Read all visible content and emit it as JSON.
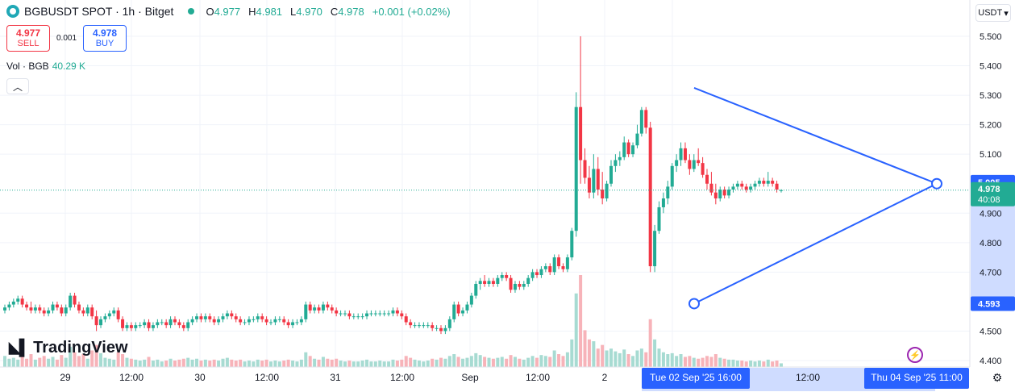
{
  "header": {
    "title": "BGBUSDT SPOT · 1h · Bitget",
    "ohlc": [
      {
        "label": "O",
        "value": "4.977"
      },
      {
        "label": "H",
        "value": "4.981"
      },
      {
        "label": "L",
        "value": "4.970"
      },
      {
        "label": "C",
        "value": "4.978"
      },
      {
        "label": "",
        "value": "+0.001 (+0.02%)"
      }
    ]
  },
  "trade": {
    "sell_price": "4.977",
    "sell_label": "SELL",
    "spread": "0.001",
    "buy_price": "4.978",
    "buy_label": "BUY"
  },
  "volume": {
    "label": "Vol · BGB",
    "value": "40.29 K"
  },
  "brand": "TradingView",
  "currency": "USDT",
  "colors": {
    "up": "#22ab94",
    "down": "#f23645",
    "up_volume": "#a7dbd2",
    "down_volume": "#f7b3b9",
    "drawing": "#2962ff",
    "range_highlight": "#cfdcff"
  },
  "chart_data": {
    "type": "candlestick",
    "timeframe": "1h",
    "ylim": [
      4.4,
      5.55
    ],
    "yticks": [
      "5.500",
      "5.400",
      "5.300",
      "5.200",
      "5.100",
      "4.900",
      "4.800",
      "4.700",
      "4.500",
      "4.400"
    ],
    "xticks": [
      "29",
      "12:00",
      "30",
      "12:00",
      "31",
      "12:00",
      "Sep",
      "12:00",
      "2",
      "12:00"
    ],
    "price_labels": [
      {
        "value": 5.005,
        "text": "5.005",
        "style": "outline"
      },
      {
        "value": 4.978,
        "text": "4.978",
        "sub": "40:08",
        "style": "last"
      },
      {
        "value": 4.593,
        "text": "4.593",
        "style": "outline"
      }
    ],
    "date_range_labels": [
      "Tue 02 Sep '25  16:00",
      "Thu 04 Sep '25  11:00"
    ],
    "triangle_drawing": {
      "points": [
        {
          "bar": 130,
          "price": 5.325
        },
        {
          "bar": 170,
          "price": 5.0
        },
        {
          "bar": 130,
          "price": 4.593
        }
      ]
    },
    "candles": [
      [
        4.57,
        4.59,
        4.56,
        4.58,
        12
      ],
      [
        4.58,
        4.6,
        4.57,
        4.59,
        9
      ],
      [
        4.59,
        4.61,
        4.58,
        4.6,
        10
      ],
      [
        4.6,
        4.62,
        4.59,
        4.61,
        8
      ],
      [
        4.61,
        4.62,
        4.58,
        4.59,
        11
      ],
      [
        4.59,
        4.6,
        4.57,
        4.58,
        9
      ],
      [
        4.58,
        4.6,
        4.56,
        4.57,
        14
      ],
      [
        4.57,
        4.59,
        4.56,
        4.58,
        8
      ],
      [
        4.58,
        4.59,
        4.56,
        4.57,
        10
      ],
      [
        4.57,
        4.58,
        4.55,
        4.56,
        12
      ],
      [
        4.56,
        4.58,
        4.55,
        4.57,
        9
      ],
      [
        4.57,
        4.6,
        4.56,
        4.59,
        11
      ],
      [
        4.59,
        4.6,
        4.57,
        4.58,
        8
      ],
      [
        4.58,
        4.59,
        4.55,
        4.56,
        13
      ],
      [
        4.56,
        4.59,
        4.55,
        4.58,
        10
      ],
      [
        4.58,
        4.63,
        4.57,
        4.62,
        22
      ],
      [
        4.62,
        4.63,
        4.58,
        4.59,
        16
      ],
      [
        4.59,
        4.6,
        4.56,
        4.57,
        12
      ],
      [
        4.57,
        4.58,
        4.55,
        4.56,
        14
      ],
      [
        4.56,
        4.59,
        4.55,
        4.58,
        9
      ],
      [
        4.58,
        4.59,
        4.54,
        4.55,
        18
      ],
      [
        4.55,
        4.57,
        4.5,
        4.52,
        24
      ],
      [
        4.52,
        4.55,
        4.51,
        4.54,
        15
      ],
      [
        4.54,
        4.56,
        4.53,
        4.55,
        10
      ],
      [
        4.55,
        4.57,
        4.54,
        4.56,
        9
      ],
      [
        4.56,
        4.58,
        4.55,
        4.57,
        8
      ],
      [
        4.57,
        4.58,
        4.53,
        4.54,
        16
      ],
      [
        4.54,
        4.55,
        4.5,
        4.51,
        14
      ],
      [
        4.51,
        4.53,
        4.5,
        4.52,
        10
      ],
      [
        4.52,
        4.53,
        4.5,
        4.51,
        9
      ],
      [
        4.51,
        4.53,
        4.5,
        4.52,
        8
      ],
      [
        4.52,
        4.53,
        4.51,
        4.52,
        7
      ],
      [
        4.52,
        4.54,
        4.51,
        4.53,
        8
      ],
      [
        4.53,
        4.54,
        4.5,
        4.51,
        11
      ],
      [
        4.51,
        4.53,
        4.5,
        4.52,
        7
      ],
      [
        4.52,
        4.54,
        4.51,
        4.53,
        8
      ],
      [
        4.53,
        4.54,
        4.52,
        4.53,
        6
      ],
      [
        4.53,
        4.54,
        4.51,
        4.52,
        7
      ],
      [
        4.52,
        4.55,
        4.51,
        4.54,
        9
      ],
      [
        4.54,
        4.55,
        4.52,
        4.53,
        7
      ],
      [
        4.53,
        4.54,
        4.51,
        4.52,
        8
      ],
      [
        4.52,
        4.53,
        4.5,
        4.51,
        9
      ],
      [
        4.51,
        4.54,
        4.5,
        4.53,
        10
      ],
      [
        4.53,
        4.55,
        4.52,
        4.54,
        8
      ],
      [
        4.54,
        4.56,
        4.53,
        4.55,
        9
      ],
      [
        4.55,
        4.56,
        4.53,
        4.54,
        7
      ],
      [
        4.54,
        4.56,
        4.53,
        4.55,
        8
      ],
      [
        4.55,
        4.56,
        4.53,
        4.54,
        7
      ],
      [
        4.54,
        4.55,
        4.52,
        4.53,
        8
      ],
      [
        4.53,
        4.55,
        4.52,
        4.54,
        7
      ],
      [
        4.54,
        4.56,
        4.53,
        4.55,
        9
      ],
      [
        4.55,
        4.57,
        4.54,
        4.56,
        10
      ],
      [
        4.56,
        4.57,
        4.54,
        4.55,
        8
      ],
      [
        4.55,
        4.56,
        4.53,
        4.54,
        7
      ],
      [
        4.54,
        4.55,
        4.52,
        4.53,
        8
      ],
      [
        4.53,
        4.54,
        4.52,
        4.53,
        6
      ],
      [
        4.53,
        4.55,
        4.52,
        4.54,
        7
      ],
      [
        4.54,
        4.55,
        4.53,
        4.54,
        6
      ],
      [
        4.54,
        4.56,
        4.53,
        4.55,
        8
      ],
      [
        4.55,
        4.56,
        4.53,
        4.54,
        7
      ],
      [
        4.54,
        4.55,
        4.52,
        4.53,
        8
      ],
      [
        4.53,
        4.54,
        4.52,
        4.53,
        6
      ],
      [
        4.53,
        4.55,
        4.52,
        4.54,
        7
      ],
      [
        4.54,
        4.55,
        4.53,
        4.54,
        6
      ],
      [
        4.54,
        4.55,
        4.52,
        4.53,
        7
      ],
      [
        4.53,
        4.54,
        4.51,
        4.52,
        8
      ],
      [
        4.52,
        4.54,
        4.51,
        4.53,
        7
      ],
      [
        4.53,
        4.54,
        4.52,
        4.53,
        6
      ],
      [
        4.53,
        4.55,
        4.52,
        4.54,
        8
      ],
      [
        4.54,
        4.6,
        4.53,
        4.59,
        16
      ],
      [
        4.59,
        4.6,
        4.56,
        4.57,
        12
      ],
      [
        4.57,
        4.59,
        4.56,
        4.58,
        9
      ],
      [
        4.58,
        4.59,
        4.56,
        4.57,
        8
      ],
      [
        4.57,
        4.6,
        4.56,
        4.59,
        11
      ],
      [
        4.59,
        4.6,
        4.57,
        4.58,
        9
      ],
      [
        4.58,
        4.59,
        4.56,
        4.57,
        8
      ],
      [
        4.57,
        4.58,
        4.55,
        4.56,
        9
      ],
      [
        4.56,
        4.57,
        4.55,
        4.56,
        7
      ],
      [
        4.56,
        4.57,
        4.55,
        4.56,
        6
      ],
      [
        4.56,
        4.57,
        4.54,
        4.55,
        7
      ],
      [
        4.55,
        4.56,
        4.54,
        4.55,
        6
      ],
      [
        4.55,
        4.56,
        4.54,
        4.55,
        6
      ],
      [
        4.55,
        4.56,
        4.54,
        4.55,
        7
      ],
      [
        4.55,
        4.57,
        4.54,
        4.56,
        8
      ],
      [
        4.56,
        4.57,
        4.55,
        4.56,
        6
      ],
      [
        4.56,
        4.57,
        4.55,
        4.56,
        6
      ],
      [
        4.56,
        4.57,
        4.55,
        4.56,
        7
      ],
      [
        4.56,
        4.57,
        4.55,
        4.56,
        6
      ],
      [
        4.56,
        4.57,
        4.55,
        4.56,
        6
      ],
      [
        4.56,
        4.58,
        4.55,
        4.57,
        8
      ],
      [
        4.57,
        4.58,
        4.55,
        4.56,
        7
      ],
      [
        4.56,
        4.57,
        4.54,
        4.55,
        8
      ],
      [
        4.55,
        4.56,
        4.52,
        4.53,
        12
      ],
      [
        4.53,
        4.54,
        4.51,
        4.52,
        10
      ],
      [
        4.52,
        4.53,
        4.51,
        4.52,
        8
      ],
      [
        4.52,
        4.53,
        4.51,
        4.52,
        7
      ],
      [
        4.52,
        4.53,
        4.51,
        4.52,
        6
      ],
      [
        4.52,
        4.53,
        4.51,
        4.52,
        7
      ],
      [
        4.52,
        4.53,
        4.5,
        4.51,
        9
      ],
      [
        4.51,
        4.52,
        4.5,
        4.51,
        8
      ],
      [
        4.51,
        4.52,
        4.49,
        4.5,
        10
      ],
      [
        4.5,
        4.52,
        4.49,
        4.51,
        9
      ],
      [
        4.51,
        4.55,
        4.5,
        4.54,
        12
      ],
      [
        4.54,
        4.6,
        4.53,
        4.59,
        14
      ],
      [
        4.59,
        4.6,
        4.55,
        4.56,
        11
      ],
      [
        4.56,
        4.58,
        4.55,
        4.57,
        9
      ],
      [
        4.57,
        4.6,
        4.56,
        4.59,
        10
      ],
      [
        4.59,
        4.63,
        4.58,
        4.62,
        12
      ],
      [
        4.62,
        4.67,
        4.61,
        4.66,
        15
      ],
      [
        4.66,
        4.68,
        4.64,
        4.67,
        13
      ],
      [
        4.67,
        4.69,
        4.65,
        4.66,
        11
      ],
      [
        4.66,
        4.68,
        4.65,
        4.67,
        10
      ],
      [
        4.67,
        4.68,
        4.65,
        4.66,
        9
      ],
      [
        4.66,
        4.69,
        4.65,
        4.68,
        10
      ],
      [
        4.68,
        4.7,
        4.67,
        4.69,
        11
      ],
      [
        4.69,
        4.7,
        4.67,
        4.68,
        9
      ],
      [
        4.68,
        4.69,
        4.63,
        4.64,
        13
      ],
      [
        4.64,
        4.67,
        4.63,
        4.66,
        11
      ],
      [
        4.66,
        4.67,
        4.64,
        4.65,
        9
      ],
      [
        4.65,
        4.67,
        4.64,
        4.66,
        8
      ],
      [
        4.66,
        4.69,
        4.65,
        4.68,
        10
      ],
      [
        4.68,
        4.71,
        4.67,
        4.7,
        12
      ],
      [
        4.7,
        4.71,
        4.68,
        4.69,
        10
      ],
      [
        4.69,
        4.72,
        4.68,
        4.71,
        13
      ],
      [
        4.71,
        4.73,
        4.7,
        4.72,
        12
      ],
      [
        4.72,
        4.73,
        4.69,
        4.7,
        11
      ],
      [
        4.7,
        4.76,
        4.69,
        4.75,
        18
      ],
      [
        4.75,
        4.76,
        4.71,
        4.72,
        14
      ],
      [
        4.72,
        4.73,
        4.7,
        4.71,
        12
      ],
      [
        4.71,
        4.76,
        4.7,
        4.75,
        16
      ],
      [
        4.75,
        4.85,
        4.74,
        4.84,
        30
      ],
      [
        4.84,
        5.31,
        4.82,
        5.26,
        80
      ],
      [
        5.26,
        5.5,
        5.0,
        5.08,
        100
      ],
      [
        5.08,
        5.12,
        5.0,
        5.02,
        40
      ],
      [
        5.02,
        5.06,
        4.95,
        4.97,
        30
      ],
      [
        4.97,
        5.1,
        4.95,
        5.05,
        28
      ],
      [
        5.05,
        5.09,
        4.96,
        4.98,
        20
      ],
      [
        4.98,
        5.04,
        4.93,
        4.95,
        24
      ],
      [
        4.95,
        5.01,
        4.94,
        5.0,
        18
      ],
      [
        5.0,
        5.08,
        4.99,
        5.06,
        20
      ],
      [
        5.06,
        5.1,
        5.04,
        5.08,
        17
      ],
      [
        5.08,
        5.11,
        5.06,
        5.09,
        15
      ],
      [
        5.09,
        5.16,
        5.08,
        5.14,
        19
      ],
      [
        5.14,
        5.15,
        5.09,
        5.1,
        14
      ],
      [
        5.1,
        5.14,
        5.09,
        5.13,
        12
      ],
      [
        5.13,
        5.2,
        5.12,
        5.17,
        18
      ],
      [
        5.17,
        5.26,
        5.16,
        5.25,
        20
      ],
      [
        5.25,
        5.26,
        5.17,
        5.19,
        16
      ],
      [
        5.19,
        5.21,
        4.7,
        4.72,
        52
      ],
      [
        4.72,
        4.86,
        4.7,
        4.84,
        30
      ],
      [
        4.84,
        4.94,
        4.83,
        4.92,
        20
      ],
      [
        4.92,
        4.97,
        4.9,
        4.95,
        16
      ],
      [
        4.95,
        5.01,
        4.93,
        4.99,
        14
      ],
      [
        4.99,
        5.07,
        4.98,
        5.06,
        15
      ],
      [
        5.06,
        5.1,
        5.04,
        5.08,
        12
      ],
      [
        5.08,
        5.14,
        5.06,
        5.12,
        14
      ],
      [
        5.12,
        5.14,
        5.07,
        5.08,
        11
      ],
      [
        5.08,
        5.1,
        5.03,
        5.05,
        12
      ],
      [
        5.05,
        5.1,
        5.04,
        5.08,
        10
      ],
      [
        5.08,
        5.12,
        5.06,
        5.07,
        9
      ],
      [
        5.07,
        5.09,
        5.02,
        5.03,
        10
      ],
      [
        5.03,
        5.05,
        4.98,
        5.0,
        12
      ],
      [
        5.0,
        5.04,
        4.96,
        4.97,
        11
      ],
      [
        4.97,
        5.0,
        4.93,
        4.95,
        14
      ],
      [
        4.95,
        4.99,
        4.94,
        4.98,
        10
      ],
      [
        4.98,
        4.99,
        4.95,
        4.96,
        9
      ],
      [
        4.96,
        4.99,
        4.95,
        4.98,
        8
      ],
      [
        4.98,
        5.0,
        4.97,
        4.99,
        8
      ],
      [
        4.99,
        5.01,
        4.98,
        5.0,
        7
      ],
      [
        5.0,
        5.01,
        4.98,
        4.99,
        7
      ],
      [
        4.99,
        5.0,
        4.97,
        4.98,
        6
      ],
      [
        4.98,
        5.0,
        4.97,
        4.99,
        7
      ],
      [
        4.99,
        5.01,
        4.98,
        5.0,
        6
      ],
      [
        5.0,
        5.02,
        4.99,
        5.01,
        7
      ],
      [
        5.01,
        5.02,
        4.99,
        5.0,
        6
      ],
      [
        5.0,
        5.04,
        4.99,
        5.01,
        8
      ],
      [
        5.01,
        5.02,
        4.99,
        5.0,
        6
      ],
      [
        5.0,
        5.01,
        4.97,
        4.98,
        7
      ],
      [
        4.977,
        4.981,
        4.97,
        4.978,
        4
      ]
    ]
  }
}
